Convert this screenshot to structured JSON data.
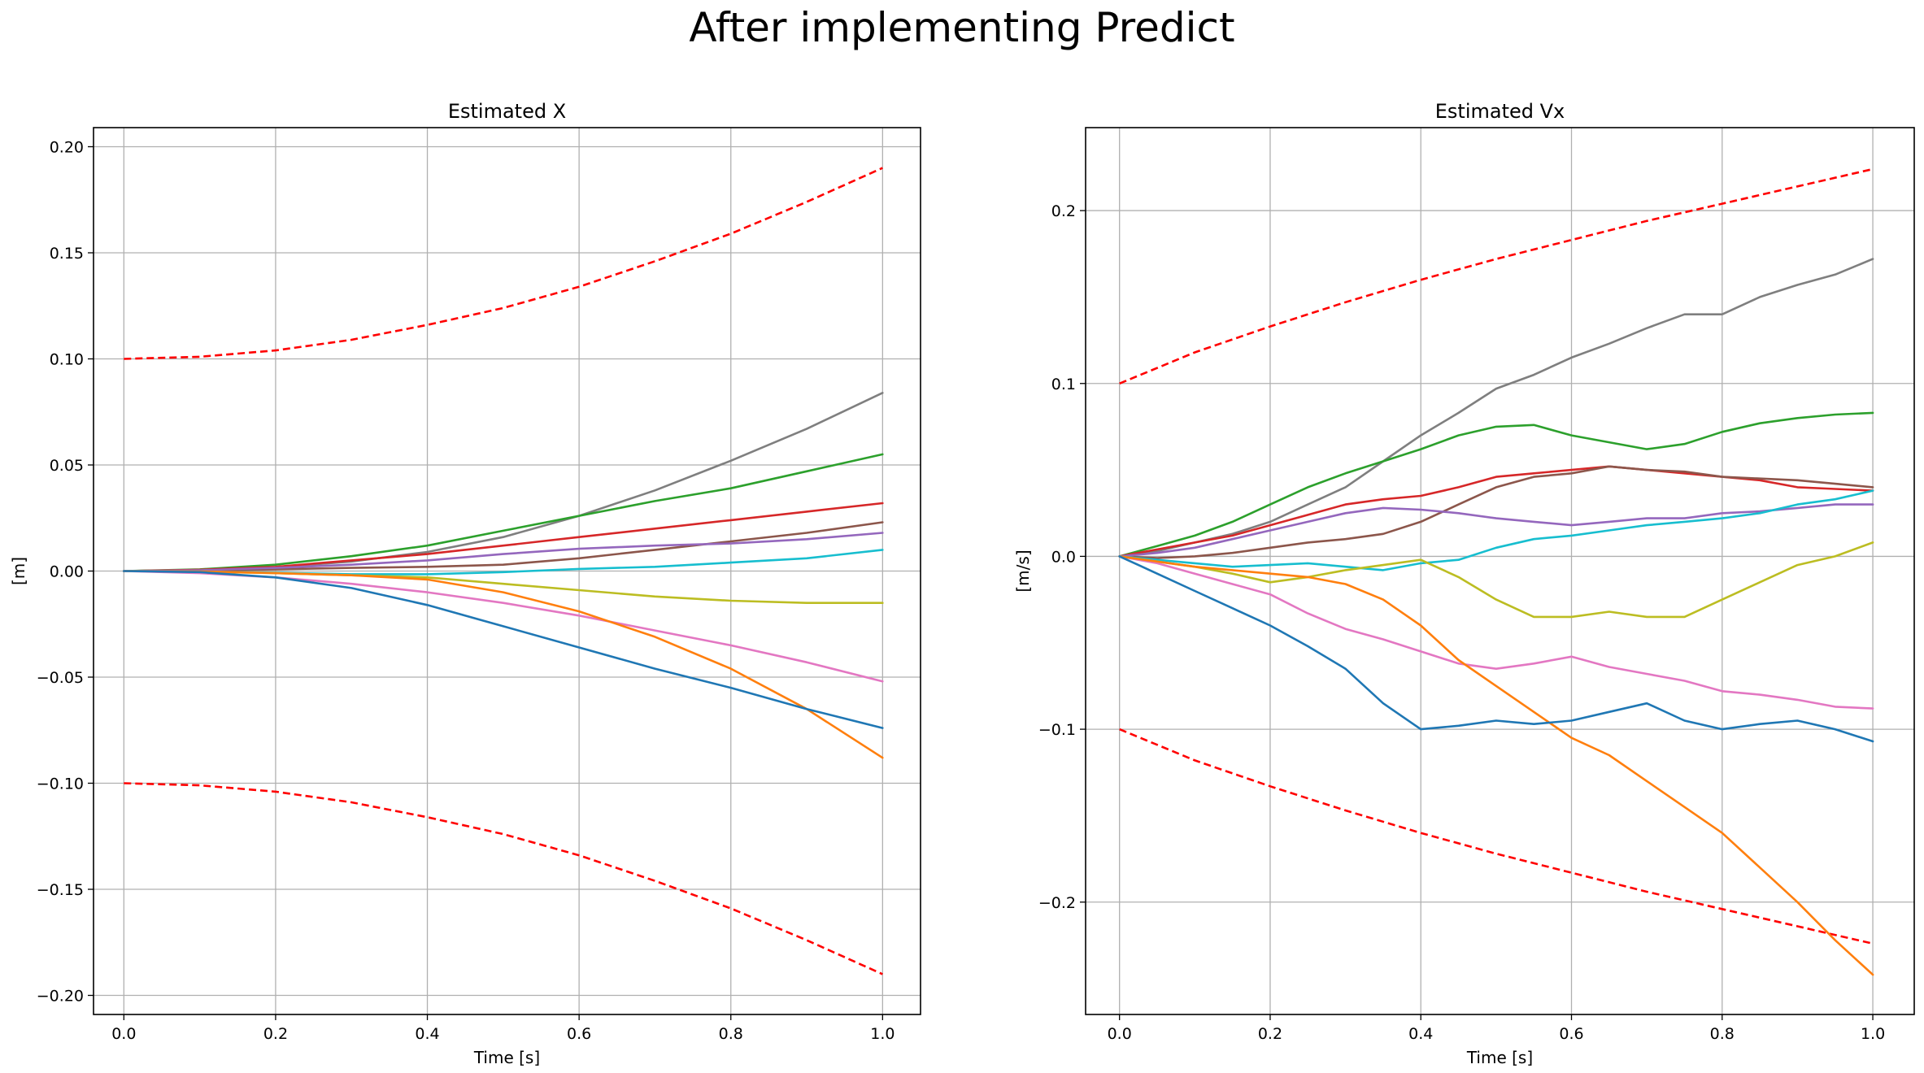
{
  "figure": {
    "suptitle": "After implementing Predict"
  },
  "chart_data": [
    {
      "type": "line",
      "title": "Estimated X",
      "xlabel": "Time [s]",
      "ylabel": "[m]",
      "xlim": [
        -0.04,
        1.05
      ],
      "ylim": [
        -0.209,
        0.209
      ],
      "xticks": [
        0.0,
        0.2,
        0.4,
        0.6,
        0.8,
        1.0
      ],
      "xtick_labels": [
        "0.0",
        "0.2",
        "0.4",
        "0.6",
        "0.8",
        "1.0"
      ],
      "yticks": [
        -0.2,
        -0.15,
        -0.1,
        -0.05,
        0.0,
        0.05,
        0.1,
        0.15,
        0.2
      ],
      "ytick_labels": [
        "−0.20",
        "−0.15",
        "−0.10",
        "−0.05",
        "0.00",
        "0.05",
        "0.10",
        "0.15",
        "0.20"
      ],
      "grid": true,
      "series": [
        {
          "color": "#ff0000",
          "dashed": true,
          "x": [
            0.0,
            0.1,
            0.2,
            0.3,
            0.4,
            0.5,
            0.6,
            0.7,
            0.8,
            0.9,
            1.0
          ],
          "y": [
            0.1,
            0.101,
            0.104,
            0.109,
            0.116,
            0.124,
            0.134,
            0.146,
            0.159,
            0.174,
            0.19
          ]
        },
        {
          "color": "#ff0000",
          "dashed": true,
          "x": [
            0.0,
            0.1,
            0.2,
            0.3,
            0.4,
            0.5,
            0.6,
            0.7,
            0.8,
            0.9,
            1.0
          ],
          "y": [
            -0.1,
            -0.101,
            -0.104,
            -0.109,
            -0.116,
            -0.124,
            -0.134,
            -0.146,
            -0.159,
            -0.174,
            -0.19
          ]
        },
        {
          "color": "#7f7f7f",
          "x": [
            0.0,
            0.1,
            0.2,
            0.3,
            0.4,
            0.5,
            0.6,
            0.7,
            0.8,
            0.9,
            1.0
          ],
          "y": [
            0.0,
            0.0005,
            0.0018,
            0.0045,
            0.009,
            0.016,
            0.026,
            0.038,
            0.052,
            0.067,
            0.084
          ]
        },
        {
          "color": "#2ca02c",
          "x": [
            0.0,
            0.1,
            0.2,
            0.3,
            0.4,
            0.5,
            0.6,
            0.7,
            0.8,
            0.9,
            1.0
          ],
          "y": [
            0.0,
            0.0008,
            0.003,
            0.007,
            0.012,
            0.019,
            0.026,
            0.033,
            0.039,
            0.047,
            0.055
          ]
        },
        {
          "color": "#d62728",
          "x": [
            0.0,
            0.1,
            0.2,
            0.3,
            0.4,
            0.5,
            0.6,
            0.7,
            0.8,
            0.9,
            1.0
          ],
          "y": [
            0.0,
            0.0006,
            0.002,
            0.005,
            0.008,
            0.012,
            0.016,
            0.02,
            0.024,
            0.028,
            0.032
          ]
        },
        {
          "color": "#8c564b",
          "x": [
            0.0,
            0.1,
            0.2,
            0.3,
            0.4,
            0.5,
            0.6,
            0.7,
            0.8,
            0.9,
            1.0
          ],
          "y": [
            0.0,
            0.0002,
            0.0008,
            0.0015,
            0.002,
            0.003,
            0.006,
            0.01,
            0.014,
            0.018,
            0.023
          ]
        },
        {
          "color": "#9467bd",
          "x": [
            0.0,
            0.1,
            0.2,
            0.3,
            0.4,
            0.5,
            0.6,
            0.7,
            0.8,
            0.9,
            1.0
          ],
          "y": [
            0.0,
            0.0004,
            0.0015,
            0.003,
            0.005,
            0.008,
            0.0105,
            0.012,
            0.013,
            0.015,
            0.018
          ]
        },
        {
          "color": "#17becf",
          "x": [
            0.0,
            0.1,
            0.2,
            0.3,
            0.4,
            0.5,
            0.6,
            0.7,
            0.8,
            0.9,
            1.0
          ],
          "y": [
            0.0,
            -0.0002,
            -0.0008,
            -0.0015,
            -0.0015,
            -0.0005,
            0.001,
            0.002,
            0.004,
            0.006,
            0.01
          ]
        },
        {
          "color": "#bcbd22",
          "x": [
            0.0,
            0.1,
            0.2,
            0.3,
            0.4,
            0.5,
            0.6,
            0.7,
            0.8,
            0.9,
            1.0
          ],
          "y": [
            0.0,
            -0.0003,
            -0.001,
            -0.002,
            -0.003,
            -0.006,
            -0.009,
            -0.012,
            -0.014,
            -0.015,
            -0.015
          ]
        },
        {
          "color": "#e377c2",
          "x": [
            0.0,
            0.1,
            0.2,
            0.3,
            0.4,
            0.5,
            0.6,
            0.7,
            0.8,
            0.9,
            1.0
          ],
          "y": [
            0.0,
            -0.001,
            -0.003,
            -0.006,
            -0.01,
            -0.015,
            -0.021,
            -0.028,
            -0.035,
            -0.043,
            -0.052
          ]
        },
        {
          "color": "#ff7f0e",
          "x": [
            0.0,
            0.1,
            0.2,
            0.3,
            0.4,
            0.5,
            0.6,
            0.7,
            0.8,
            0.9,
            1.0
          ],
          "y": [
            0.0,
            -0.0002,
            -0.001,
            -0.002,
            -0.004,
            -0.01,
            -0.019,
            -0.031,
            -0.046,
            -0.065,
            -0.088
          ]
        },
        {
          "color": "#1f77b4",
          "x": [
            0.0,
            0.1,
            0.2,
            0.3,
            0.4,
            0.5,
            0.6,
            0.7,
            0.8,
            0.9,
            1.0
          ],
          "y": [
            0.0,
            -0.0005,
            -0.003,
            -0.008,
            -0.016,
            -0.026,
            -0.036,
            -0.046,
            -0.055,
            -0.065,
            -0.074
          ]
        }
      ]
    },
    {
      "type": "line",
      "title": "Estimated Vx",
      "xlabel": "Time [s]",
      "ylabel": "[m/s]",
      "xlim": [
        -0.045,
        1.055
      ],
      "ylim": [
        -0.265,
        0.248
      ],
      "xticks": [
        0.0,
        0.2,
        0.4,
        0.6,
        0.8,
        1.0
      ],
      "xtick_labels": [
        "0.0",
        "0.2",
        "0.4",
        "0.6",
        "0.8",
        "1.0"
      ],
      "yticks": [
        -0.2,
        -0.1,
        0.0,
        0.1,
        0.2
      ],
      "ytick_labels": [
        "−0.2",
        "−0.1",
        "0.0",
        "0.1",
        "0.2"
      ],
      "grid": true,
      "series": [
        {
          "color": "#ff0000",
          "dashed": true,
          "x": [
            0.0,
            0.1,
            0.2,
            0.3,
            0.4,
            0.5,
            0.6,
            0.7,
            0.8,
            0.9,
            1.0
          ],
          "y": [
            0.1,
            0.118,
            0.133,
            0.147,
            0.16,
            0.172,
            0.183,
            0.194,
            0.204,
            0.214,
            0.224
          ]
        },
        {
          "color": "#ff0000",
          "dashed": true,
          "x": [
            0.0,
            0.1,
            0.2,
            0.3,
            0.4,
            0.5,
            0.6,
            0.7,
            0.8,
            0.9,
            1.0
          ],
          "y": [
            -0.1,
            -0.118,
            -0.133,
            -0.147,
            -0.16,
            -0.172,
            -0.183,
            -0.194,
            -0.204,
            -0.214,
            -0.224
          ]
        },
        {
          "color": "#7f7f7f",
          "x": [
            0.0,
            0.05,
            0.1,
            0.15,
            0.2,
            0.25,
            0.3,
            0.35,
            0.4,
            0.45,
            0.5,
            0.55,
            0.6,
            0.65,
            0.7,
            0.75,
            0.8,
            0.85,
            0.9,
            0.95,
            1.0
          ],
          "y": [
            0.0,
            0.003,
            0.008,
            0.013,
            0.02,
            0.03,
            0.04,
            0.055,
            0.07,
            0.083,
            0.097,
            0.105,
            0.115,
            0.123,
            0.132,
            0.14,
            0.14,
            0.15,
            0.157,
            0.163,
            0.172
          ]
        },
        {
          "color": "#2ca02c",
          "x": [
            0.0,
            0.05,
            0.1,
            0.15,
            0.2,
            0.25,
            0.3,
            0.35,
            0.4,
            0.45,
            0.5,
            0.55,
            0.6,
            0.65,
            0.7,
            0.75,
            0.8,
            0.85,
            0.9,
            0.95,
            1.0
          ],
          "y": [
            0.0,
            0.006,
            0.012,
            0.02,
            0.03,
            0.04,
            0.048,
            0.055,
            0.062,
            0.07,
            0.075,
            0.076,
            0.07,
            0.066,
            0.062,
            0.065,
            0.072,
            0.077,
            0.08,
            0.082,
            0.083
          ]
        },
        {
          "color": "#d62728",
          "x": [
            0.0,
            0.05,
            0.1,
            0.15,
            0.2,
            0.25,
            0.3,
            0.35,
            0.4,
            0.45,
            0.5,
            0.55,
            0.6,
            0.65,
            0.7,
            0.75,
            0.8,
            0.85,
            0.9,
            0.95,
            1.0
          ],
          "y": [
            0.0,
            0.004,
            0.008,
            0.012,
            0.018,
            0.024,
            0.03,
            0.033,
            0.035,
            0.04,
            0.046,
            0.048,
            0.05,
            0.052,
            0.05,
            0.048,
            0.046,
            0.044,
            0.04,
            0.039,
            0.038
          ]
        },
        {
          "color": "#8c564b",
          "x": [
            0.0,
            0.05,
            0.1,
            0.15,
            0.2,
            0.25,
            0.3,
            0.35,
            0.4,
            0.45,
            0.5,
            0.55,
            0.6,
            0.65,
            0.7,
            0.75,
            0.8,
            0.85,
            0.9,
            0.95,
            1.0
          ],
          "y": [
            0.0,
            -0.001,
            0.0,
            0.002,
            0.005,
            0.008,
            0.01,
            0.013,
            0.02,
            0.03,
            0.04,
            0.046,
            0.048,
            0.052,
            0.05,
            0.049,
            0.046,
            0.045,
            0.044,
            0.042,
            0.04
          ]
        },
        {
          "color": "#9467bd",
          "x": [
            0.0,
            0.05,
            0.1,
            0.15,
            0.2,
            0.25,
            0.3,
            0.35,
            0.4,
            0.45,
            0.5,
            0.55,
            0.6,
            0.65,
            0.7,
            0.75,
            0.8,
            0.85,
            0.9,
            0.95,
            1.0
          ],
          "y": [
            0.0,
            0.002,
            0.005,
            0.01,
            0.015,
            0.02,
            0.025,
            0.028,
            0.027,
            0.025,
            0.022,
            0.02,
            0.018,
            0.02,
            0.022,
            0.022,
            0.025,
            0.026,
            0.028,
            0.03,
            0.03
          ]
        },
        {
          "color": "#17becf",
          "x": [
            0.0,
            0.05,
            0.1,
            0.15,
            0.2,
            0.25,
            0.3,
            0.35,
            0.4,
            0.45,
            0.5,
            0.55,
            0.6,
            0.65,
            0.7,
            0.75,
            0.8,
            0.85,
            0.9,
            0.95,
            1.0
          ],
          "y": [
            0.0,
            -0.002,
            -0.004,
            -0.006,
            -0.005,
            -0.004,
            -0.006,
            -0.008,
            -0.004,
            -0.002,
            0.005,
            0.01,
            0.012,
            0.015,
            0.018,
            0.02,
            0.022,
            0.025,
            0.03,
            0.033,
            0.038
          ]
        },
        {
          "color": "#bcbd22",
          "x": [
            0.0,
            0.05,
            0.1,
            0.15,
            0.2,
            0.25,
            0.3,
            0.35,
            0.4,
            0.45,
            0.5,
            0.55,
            0.6,
            0.65,
            0.7,
            0.75,
            0.8,
            0.85,
            0.9,
            0.95,
            1.0
          ],
          "y": [
            0.0,
            -0.003,
            -0.006,
            -0.01,
            -0.015,
            -0.012,
            -0.008,
            -0.005,
            -0.002,
            -0.012,
            -0.025,
            -0.035,
            -0.035,
            -0.032,
            -0.035,
            -0.035,
            -0.025,
            -0.015,
            -0.005,
            0.0,
            0.008
          ]
        },
        {
          "color": "#e377c2",
          "x": [
            0.0,
            0.05,
            0.1,
            0.15,
            0.2,
            0.25,
            0.3,
            0.35,
            0.4,
            0.45,
            0.5,
            0.55,
            0.6,
            0.65,
            0.7,
            0.75,
            0.8,
            0.85,
            0.9,
            0.95,
            1.0
          ],
          "y": [
            0.0,
            -0.004,
            -0.01,
            -0.016,
            -0.022,
            -0.033,
            -0.042,
            -0.048,
            -0.055,
            -0.062,
            -0.065,
            -0.062,
            -0.058,
            -0.064,
            -0.068,
            -0.072,
            -0.078,
            -0.08,
            -0.083,
            -0.087,
            -0.088
          ]
        },
        {
          "color": "#ff7f0e",
          "x": [
            0.0,
            0.05,
            0.1,
            0.15,
            0.2,
            0.25,
            0.3,
            0.35,
            0.4,
            0.45,
            0.5,
            0.55,
            0.6,
            0.65,
            0.7,
            0.75,
            0.8,
            0.85,
            0.9,
            0.95,
            1.0
          ],
          "y": [
            0.0,
            -0.003,
            -0.006,
            -0.008,
            -0.01,
            -0.012,
            -0.016,
            -0.025,
            -0.04,
            -0.06,
            -0.075,
            -0.09,
            -0.105,
            -0.115,
            -0.13,
            -0.145,
            -0.16,
            -0.18,
            -0.2,
            -0.222,
            -0.242
          ]
        },
        {
          "color": "#1f77b4",
          "x": [
            0.0,
            0.05,
            0.1,
            0.15,
            0.2,
            0.25,
            0.3,
            0.35,
            0.4,
            0.45,
            0.5,
            0.55,
            0.6,
            0.65,
            0.7,
            0.75,
            0.8,
            0.85,
            0.9,
            0.95,
            1.0
          ],
          "y": [
            0.0,
            -0.01,
            -0.02,
            -0.03,
            -0.04,
            -0.052,
            -0.065,
            -0.085,
            -0.1,
            -0.098,
            -0.095,
            -0.097,
            -0.095,
            -0.09,
            -0.085,
            -0.095,
            -0.1,
            -0.097,
            -0.095,
            -0.1,
            -0.107
          ]
        }
      ]
    }
  ]
}
